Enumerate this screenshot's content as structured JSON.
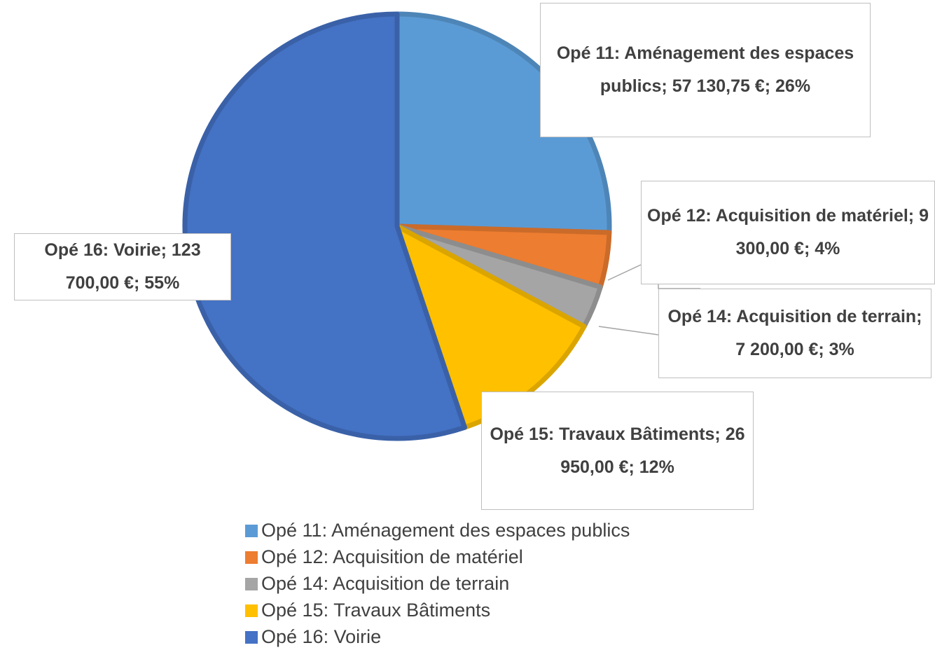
{
  "chart_data": {
    "type": "pie",
    "categories": [
      "Opé 11: Aménagement des espaces publics",
      "Opé 12: Acquisition de matériel",
      "Opé 14: Acquisition de terrain",
      "Opé 15: Travaux Bâtiments",
      "Opé 16: Voirie"
    ],
    "values": [
      57130.75,
      9300,
      7200,
      26950,
      123700
    ],
    "value_labels": [
      "Opé 11: Aménagement des espaces publics; 57 130,75 €; 26%",
      "Opé 12: Acquisition de matériel; 9 300,00 €; 4%",
      "Opé 14: Acquisition de terrain; 7 200,00 €; 3%",
      "Opé 15: Travaux Bâtiments; 26 950,00 €; 12%",
      "Opé 16: Voirie; 123 700,00 €; 55%"
    ],
    "colors": [
      "#5b9bd5",
      "#ed7d31",
      "#a5a5a5",
      "#ffc000",
      "#4472c4"
    ],
    "legend": "bottom"
  }
}
